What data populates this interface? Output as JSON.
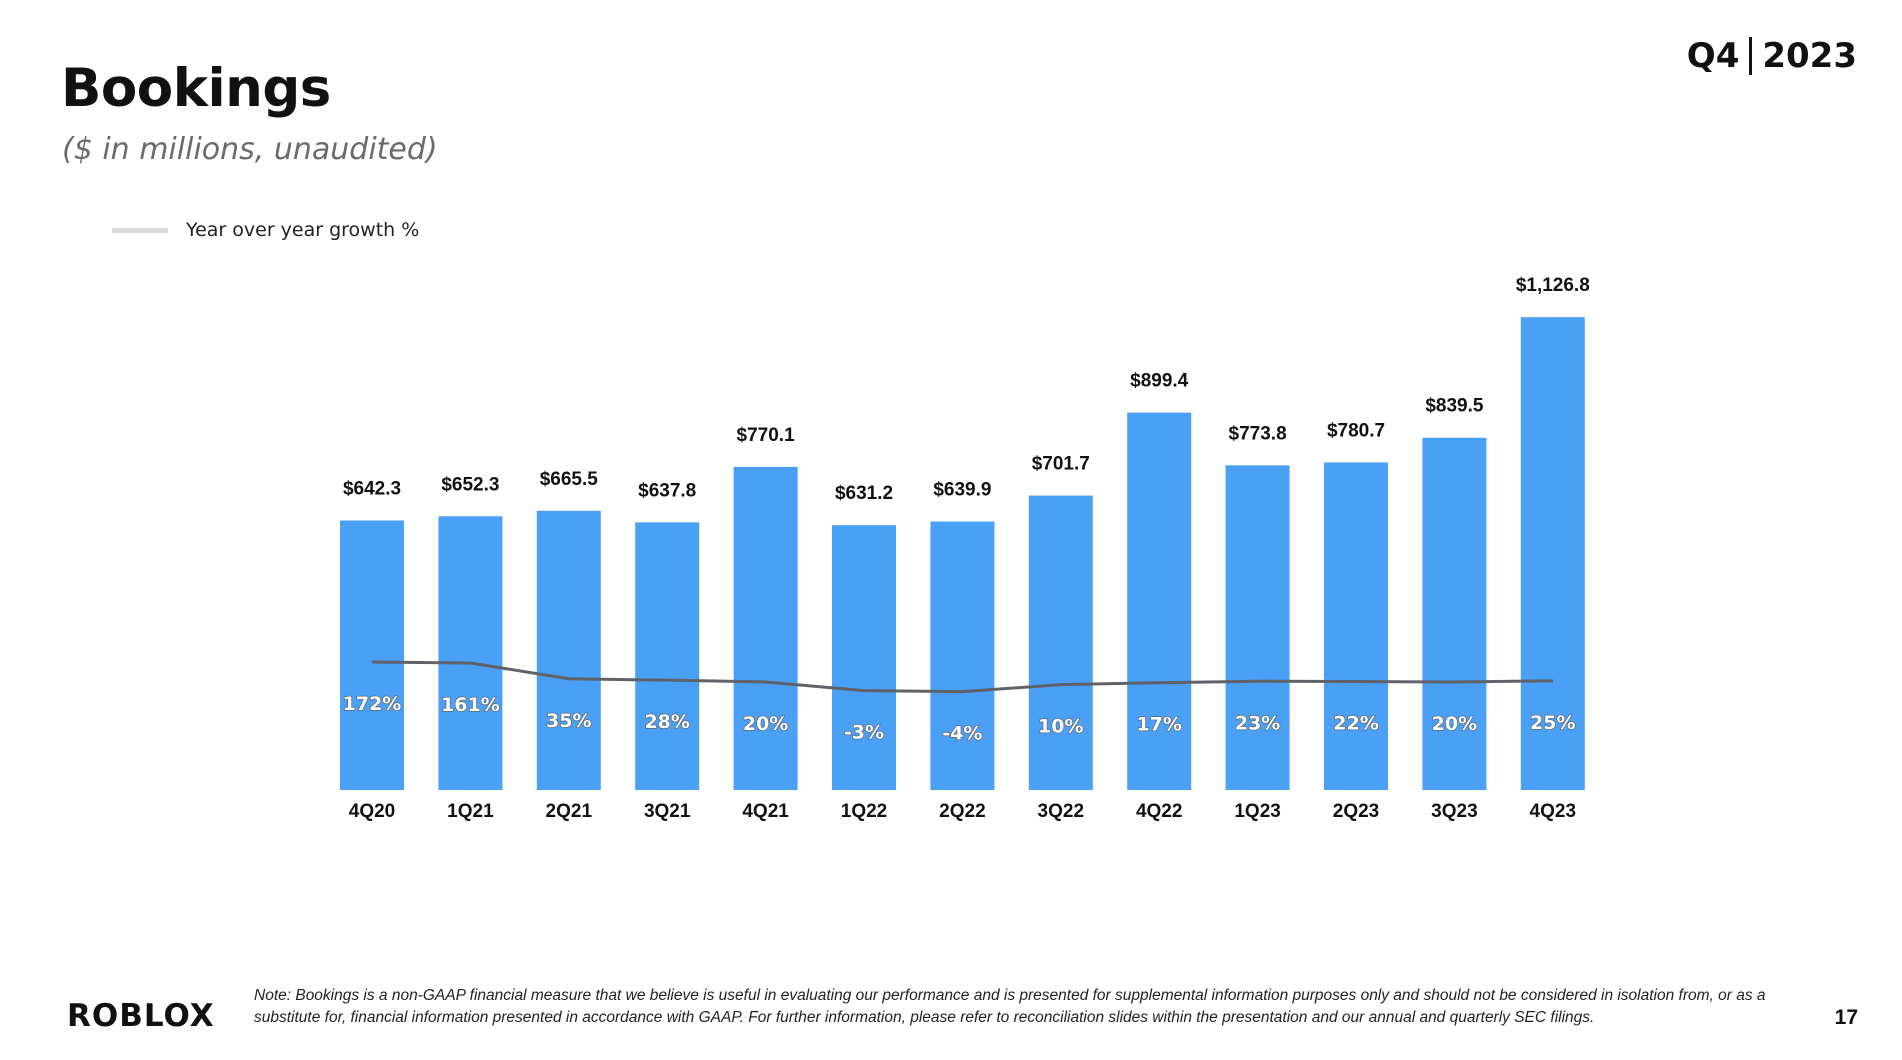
{
  "header": {
    "title": "Bookings",
    "subtitle": "($ in millions, unaudited)",
    "period_quarter": "Q4",
    "period_year": "2023"
  },
  "legend": {
    "line_label": "Year over year growth %"
  },
  "chart_data": {
    "type": "bar",
    "title": "Bookings",
    "subtitle": "($ in millions, unaudited)",
    "categories": [
      "4Q20",
      "1Q21",
      "2Q21",
      "3Q21",
      "4Q21",
      "1Q22",
      "2Q22",
      "3Q22",
      "4Q22",
      "1Q23",
      "2Q23",
      "3Q23",
      "4Q23"
    ],
    "series": [
      {
        "values": [
          642.3,
          652.3,
          665.5,
          637.8,
          770.1,
          631.2,
          639.9,
          701.7,
          899.4,
          773.8,
          780.7,
          839.5,
          1126.8
        ],
        "labels": [
          "$642.3",
          "$652.3",
          "$665.5",
          "$637.8",
          "$770.1",
          "$631.2",
          "$639.9",
          "$701.7",
          "$899.4",
          "$773.8",
          "$780.7",
          "$839.5",
          "$1,126.8"
        ],
        "color": "#4aa0f5"
      },
      {
        "name": "Year over year growth %",
        "type": "line",
        "values": [
          172,
          161,
          35,
          28,
          20,
          -3,
          -4,
          10,
          17,
          23,
          22,
          20,
          25
        ],
        "labels": [
          "172%",
          "161%",
          "35%",
          "28%",
          "20%",
          "-3%",
          "-4%",
          "10%",
          "17%",
          "23%",
          "22%",
          "20%",
          "25%"
        ],
        "color": "#5f6368"
      }
    ],
    "legend_position": "top-left",
    "grid": false
  },
  "footer": {
    "logo_text": "ROBLOX",
    "note": "Note: Bookings is a non-GAAP financial measure that we believe is useful in evaluating our performance and is presented for supplemental information purposes only and should not be considered in isolation from, or as a substitute for, financial information presented in accordance with GAAP. For further information, please refer to reconciliation slides within the presentation and our annual and quarterly SEC filings.",
    "page_number": "17"
  }
}
